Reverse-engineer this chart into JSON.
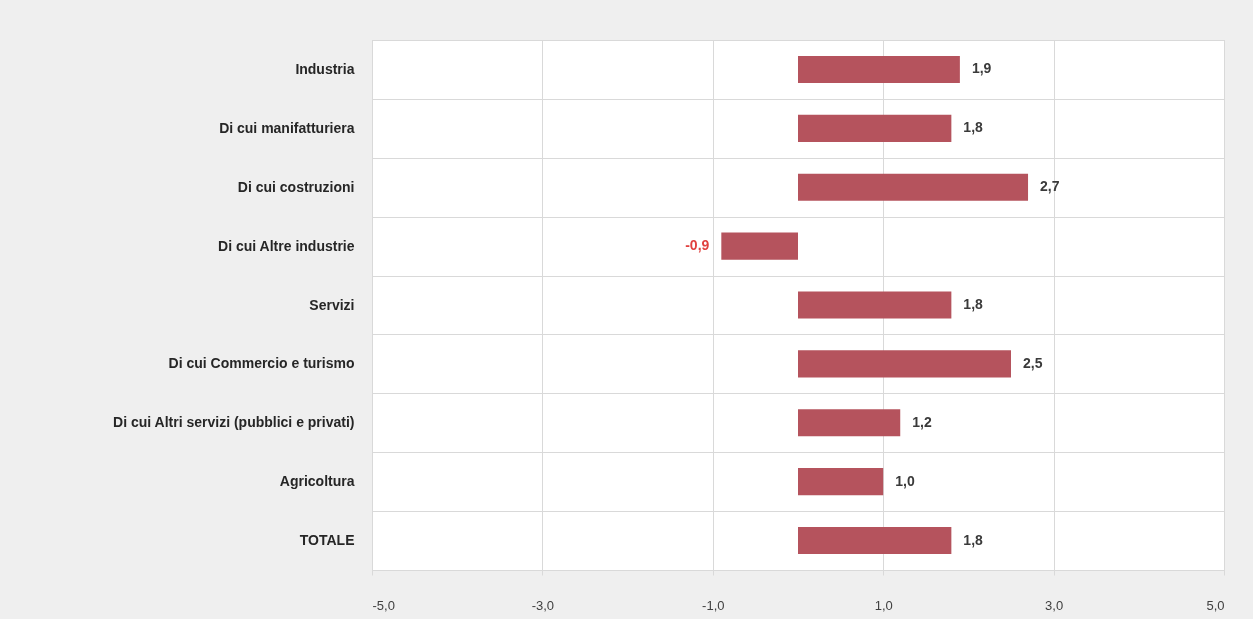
{
  "chart_data": {
    "type": "bar",
    "orientation": "horizontal",
    "categories": [
      "Industria",
      "Di cui manifatturiera",
      "Di cui costruzioni",
      "Di cui Altre industrie",
      "Servizi",
      "Di cui Commercio e turismo",
      "Di cui Altri servizi (pubblici e privati)",
      "Agricoltura",
      "TOTALE"
    ],
    "values": [
      1.9,
      1.8,
      2.7,
      -0.9,
      1.8,
      2.5,
      1.2,
      1.0,
      1.8
    ],
    "value_labels": [
      "1,9",
      "1,8",
      "2,7",
      "-0,9",
      "1,8",
      "2,5",
      "1,2",
      "1,0",
      "1,8"
    ],
    "color": "#b5535d",
    "xlim": [
      -5,
      5
    ],
    "xticks": [
      {
        "value": -5,
        "label": "-5,0"
      },
      {
        "value": -3,
        "label": "-3,0"
      },
      {
        "value": -1,
        "label": "-1,0"
      },
      {
        "value": 1,
        "label": "1,0"
      },
      {
        "value": 3,
        "label": "3,0"
      },
      {
        "value": 5,
        "label": "5,0"
      }
    ],
    "grid": true
  }
}
